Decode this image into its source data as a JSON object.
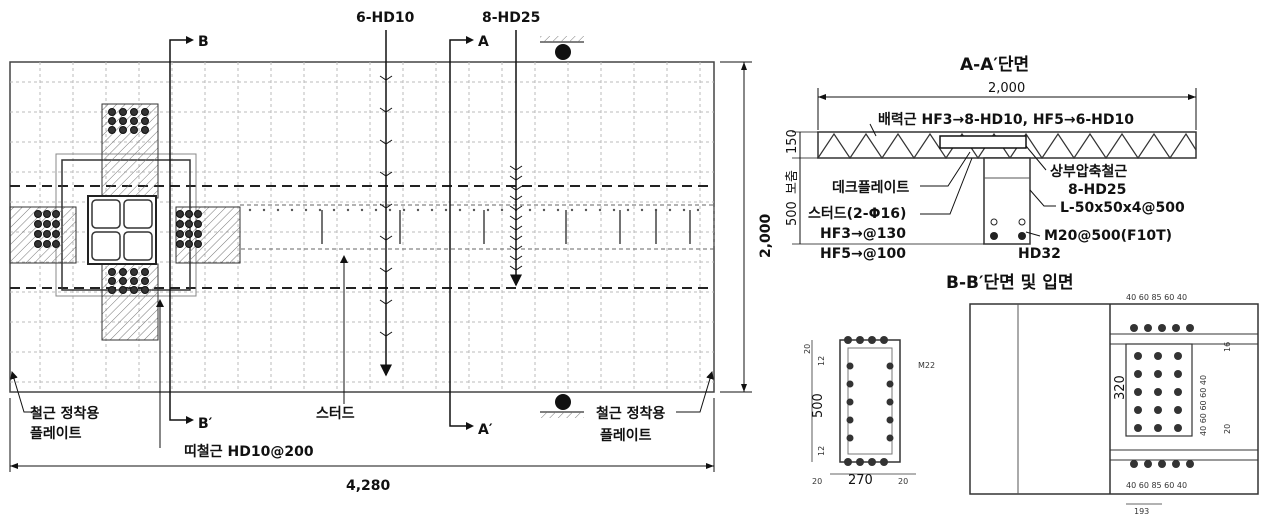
{
  "plan": {
    "section_b": "B",
    "section_b_prime": "B′",
    "section_a": "A",
    "section_a_prime": "A′",
    "top_bars_1": "6-HD10",
    "top_bars_2": "8-HD25",
    "width_dim": "4,280",
    "height_dim": "2,000",
    "anchor_plate_left_1": "철근 정착용",
    "anchor_plate_left_2": "플레이트",
    "anchor_plate_right_1": "철근 정착용",
    "anchor_plate_right_2": "플레이트",
    "stud_label": "스터드",
    "tie_bar_label": "띠철근 HD10@200"
  },
  "section_aa": {
    "title": "A-A′단면",
    "width_dim": "2,000",
    "thickness_dim": "150",
    "dist_bar": "배력근 HF3→8-HD10, HF5→6-HD10",
    "comp_bar_1": "상부압축철근",
    "comp_bar_2": "8-HD25",
    "deck_plate": "데크플레이트",
    "beam_depth_label": "보춤",
    "beam_depth_dim": "500",
    "angle": "L-50x50x4@500",
    "stud_1": "스터드(2-Φ16)",
    "stud_2": "HF3→@130",
    "stud_3": "HF5→@100",
    "bolt": "M20@500(F10T)",
    "rebar_bottom": "HD32"
  },
  "section_bb": {
    "title": "B-B′단면 및 입면",
    "dim_500": "500",
    "dim_270": "270",
    "dim_20_left": "20",
    "dim_20_right": "20",
    "dim_12_top": "12",
    "dim_12_bottom": "12",
    "dim_20_top": "20",
    "bolt_label": "M22",
    "dim_320": "320",
    "dim_193": "193",
    "dim_row_top": "40 60 85 60 40",
    "dim_row_bottom": "40 60 85 60 40",
    "dim_side": "40 60 60 60 40",
    "dim_16": "16",
    "dim_20_side": "20"
  }
}
